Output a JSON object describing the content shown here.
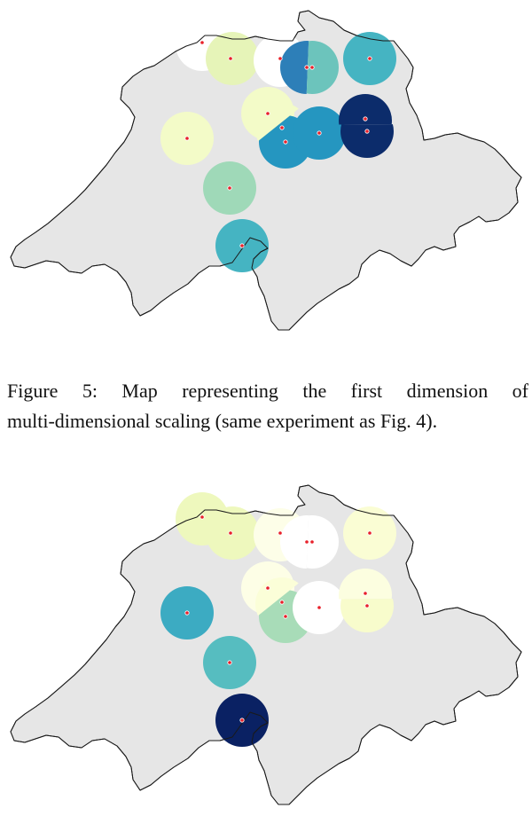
{
  "caption": {
    "line1": "Figure 5:  Map representing the first dimension of",
    "line2": "multi-dimensional scaling (same experiment as Fig. 4)."
  },
  "colors": {
    "land": "#e6e6e6",
    "border": "#1a1a1a",
    "site_dot": "#e8202a"
  },
  "maps": [
    {
      "name": "map-dimension-1",
      "sites": [
        {
          "name": "site-basel",
          "fill": "#ffffff"
        },
        {
          "name": "site-liestal",
          "fill": "#e6f4b8"
        },
        {
          "name": "site-aarau",
          "fill": "#ffffff"
        },
        {
          "name": "site-zurich-a",
          "fill": "#2d7fb8"
        },
        {
          "name": "site-zurich-b",
          "fill": "#6cc4bc"
        },
        {
          "name": "site-winterthur",
          "fill": "#45b4c2"
        },
        {
          "name": "site-solothurn",
          "fill": "#f3fbc8"
        },
        {
          "name": "site-lucerne-a",
          "fill": "#f3fbc8"
        },
        {
          "name": "site-lucerne-b",
          "fill": "#2596c0"
        },
        {
          "name": "site-zug",
          "fill": "#2596c0"
        },
        {
          "name": "site-stgallen-a",
          "fill": "#0c2c6b"
        },
        {
          "name": "site-stgallen-b",
          "fill": "#0c2c6b"
        },
        {
          "name": "site-bern",
          "fill": "#f3fbc8"
        },
        {
          "name": "site-thun",
          "fill": "#9fd9b8"
        },
        {
          "name": "site-visp",
          "fill": "#45b4c2"
        }
      ]
    },
    {
      "name": "map-dimension-2",
      "sites": [
        {
          "name": "site-basel",
          "fill": "#eef8bd"
        },
        {
          "name": "site-liestal",
          "fill": "#eef8bd"
        },
        {
          "name": "site-aarau",
          "fill": "#fdfee8"
        },
        {
          "name": "site-zurich-a",
          "fill": "#ffffff"
        },
        {
          "name": "site-zurich-b",
          "fill": "#ffffff"
        },
        {
          "name": "site-winterthur",
          "fill": "#fafdd4"
        },
        {
          "name": "site-solothurn",
          "fill": "#fdfee6"
        },
        {
          "name": "site-lucerne-a",
          "fill": "#fbfed8"
        },
        {
          "name": "site-lucerne-b",
          "fill": "#a8dcb8"
        },
        {
          "name": "site-zug",
          "fill": "#ffffff"
        },
        {
          "name": "site-stgallen-a",
          "fill": "#fcfee0"
        },
        {
          "name": "site-stgallen-b",
          "fill": "#f8fccc"
        },
        {
          "name": "site-bern",
          "fill": "#3cabc2"
        },
        {
          "name": "site-thun",
          "fill": "#56bdc0"
        },
        {
          "name": "site-visp",
          "fill": "#0a2163"
        }
      ]
    }
  ]
}
